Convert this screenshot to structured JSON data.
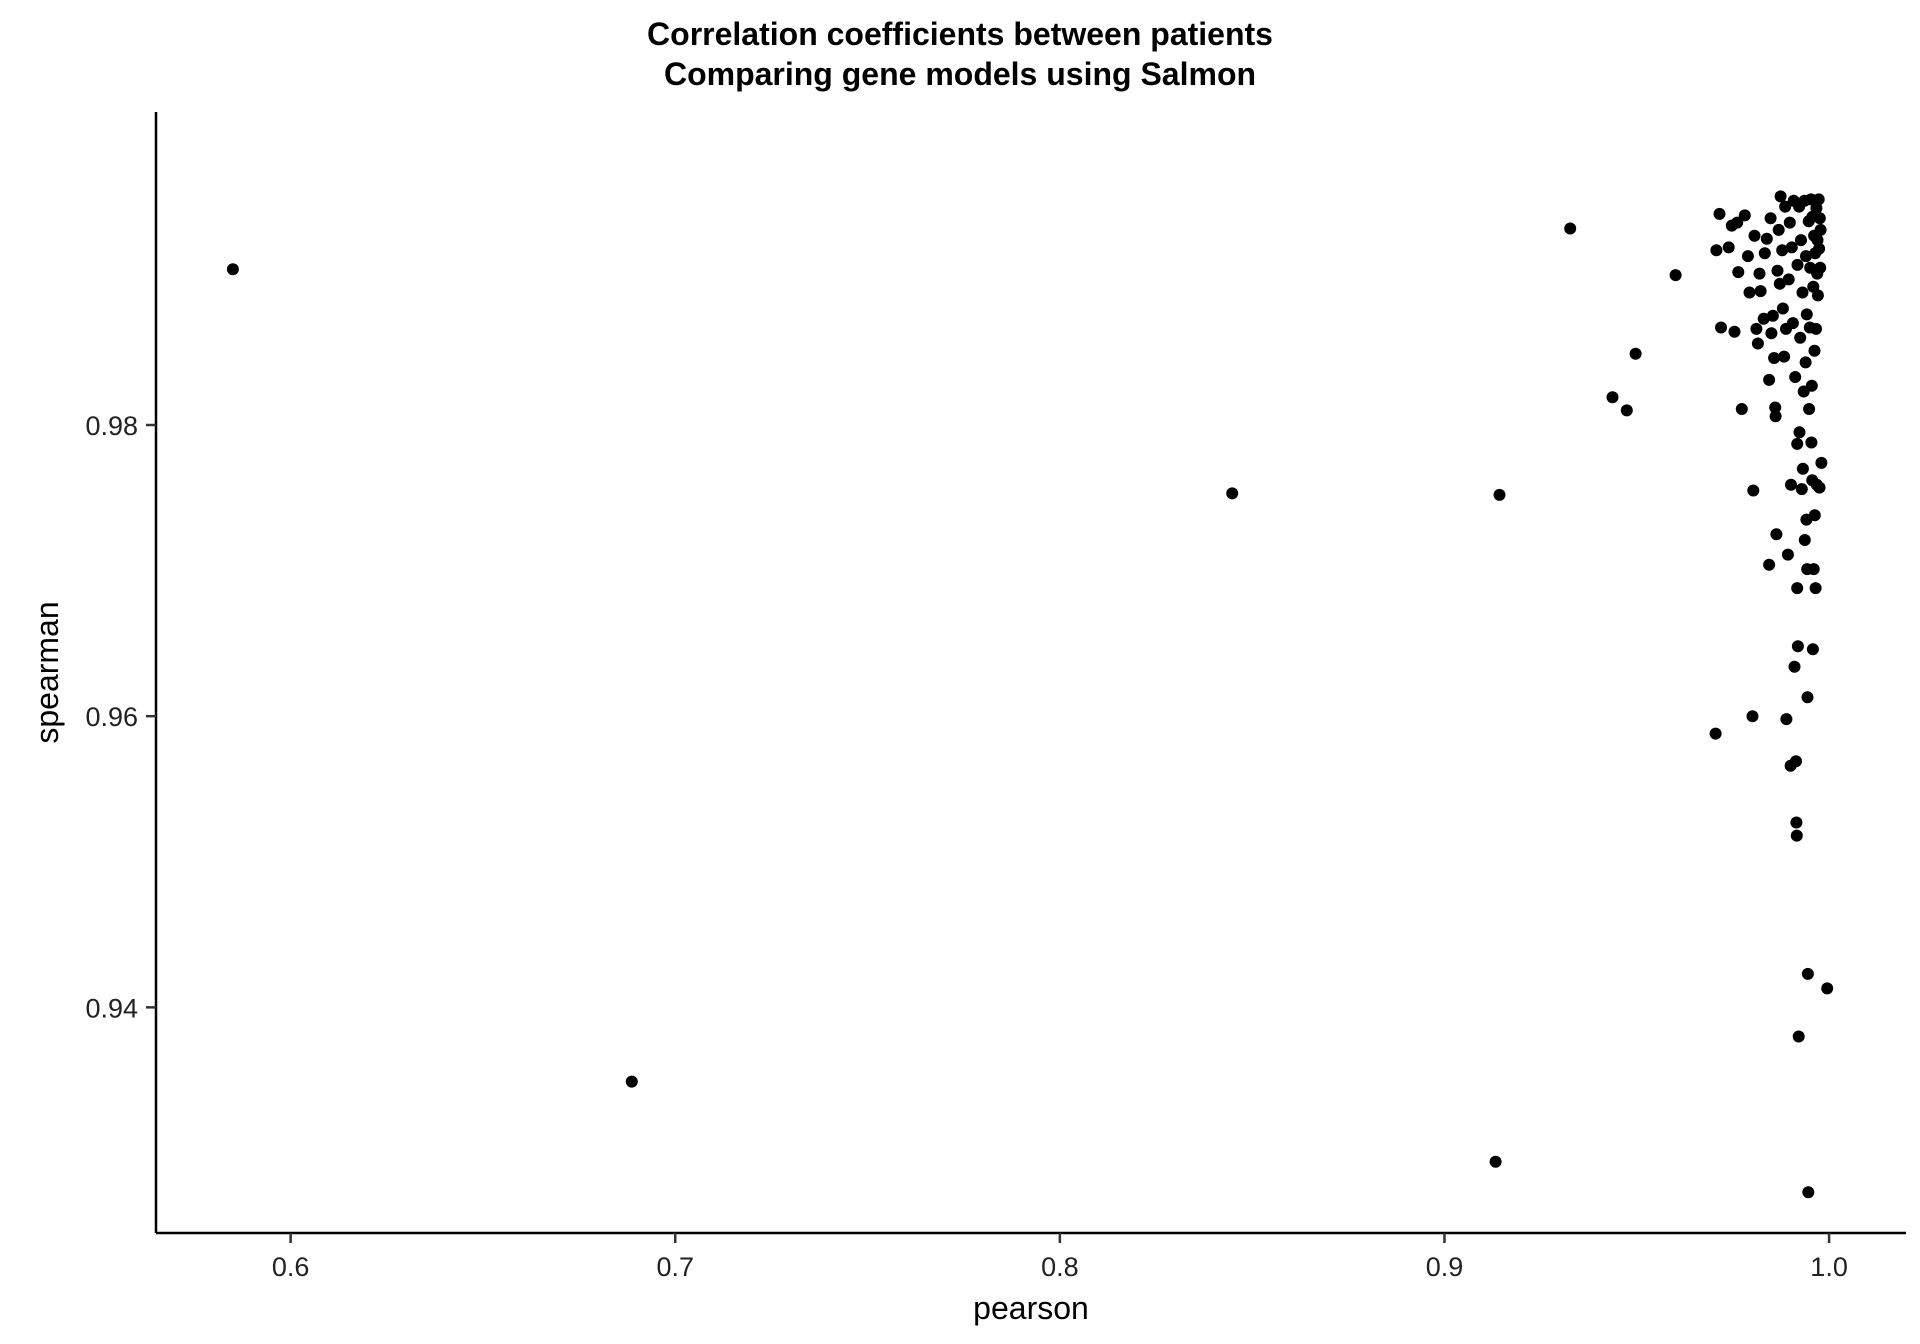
{
  "chart_data": {
    "type": "scatter",
    "title": "Correlation coefficients between patients",
    "subtitle": "Comparing gene models using Salmon",
    "xlabel": "pearson",
    "ylabel": "spearman",
    "xlim": [
      0.565,
      1.02
    ],
    "ylim": [
      0.9245,
      1.0015
    ],
    "xticks": [
      0.6,
      0.7,
      0.8,
      0.9,
      1.0
    ],
    "xtick_labels": [
      "0.6",
      "0.7",
      "0.8",
      "0.9",
      "1.0"
    ],
    "yticks": [
      0.94,
      0.96,
      0.98
    ],
    "ytick_labels": [
      "0.94",
      "0.96",
      "0.98"
    ],
    "grid": false,
    "legend": "none",
    "point_color": "#000000",
    "points": [
      [
        0.585,
        0.9907
      ],
      [
        0.6887,
        0.9349
      ],
      [
        0.8448,
        0.9753
      ],
      [
        0.9133,
        0.9294
      ],
      [
        0.9143,
        0.9752
      ],
      [
        0.9327,
        0.9935
      ],
      [
        0.9437,
        0.9819
      ],
      [
        0.9474,
        0.981
      ],
      [
        0.9497,
        0.9849
      ],
      [
        0.9601,
        0.9903
      ],
      [
        0.9705,
        0.9588
      ],
      [
        0.9707,
        0.992
      ],
      [
        0.9715,
        0.9945
      ],
      [
        0.9719,
        0.9867
      ],
      [
        0.9739,
        0.9922
      ],
      [
        0.9747,
        0.9937
      ],
      [
        0.9754,
        0.9864
      ],
      [
        0.9761,
        0.9939
      ],
      [
        0.9764,
        0.9905
      ],
      [
        0.9773,
        0.9811
      ],
      [
        0.9781,
        0.9944
      ],
      [
        0.9789,
        0.9916
      ],
      [
        0.9793,
        0.9891
      ],
      [
        0.9801,
        0.96
      ],
      [
        0.9803,
        0.9755
      ],
      [
        0.9806,
        0.993
      ],
      [
        0.9811,
        0.9866
      ],
      [
        0.9815,
        0.9856
      ],
      [
        0.9819,
        0.9904
      ],
      [
        0.9822,
        0.9892
      ],
      [
        0.983,
        0.9873
      ],
      [
        0.9833,
        0.9918
      ],
      [
        0.9838,
        0.9928
      ],
      [
        0.9844,
        0.9831
      ],
      [
        0.9844,
        0.9704
      ],
      [
        0.9848,
        0.9942
      ],
      [
        0.985,
        0.9863
      ],
      [
        0.9854,
        0.9875
      ],
      [
        0.9857,
        0.9846
      ],
      [
        0.986,
        0.9812
      ],
      [
        0.9861,
        0.9806
      ],
      [
        0.9863,
        0.9725
      ],
      [
        0.9866,
        0.9906
      ],
      [
        0.9869,
        0.9934
      ],
      [
        0.9872,
        0.9897
      ],
      [
        0.9874,
        0.9957
      ],
      [
        0.9878,
        0.992
      ],
      [
        0.988,
        0.988
      ],
      [
        0.9883,
        0.9847
      ],
      [
        0.9886,
        0.995
      ],
      [
        0.9888,
        0.9866
      ],
      [
        0.9889,
        0.9598
      ],
      [
        0.9893,
        0.9711
      ],
      [
        0.9895,
        0.99
      ],
      [
        0.9898,
        0.9939
      ],
      [
        0.99,
        0.9566
      ],
      [
        0.9901,
        0.9759
      ],
      [
        0.9903,
        0.9922
      ],
      [
        0.9906,
        0.987
      ],
      [
        0.9908,
        0.9954
      ],
      [
        0.991,
        0.9634
      ],
      [
        0.9912,
        0.9833
      ],
      [
        0.9914,
        0.9569
      ],
      [
        0.9915,
        0.9527
      ],
      [
        0.9916,
        0.9518
      ],
      [
        0.9917,
        0.9688
      ],
      [
        0.9917,
        0.9787
      ],
      [
        0.9918,
        0.991
      ],
      [
        0.9919,
        0.9648
      ],
      [
        0.9921,
        0.938
      ],
      [
        0.9922,
        0.995
      ],
      [
        0.9923,
        0.9795
      ],
      [
        0.9925,
        0.986
      ],
      [
        0.9927,
        0.9927
      ],
      [
        0.9929,
        0.9756
      ],
      [
        0.9931,
        0.9891
      ],
      [
        0.9932,
        0.977
      ],
      [
        0.9934,
        0.9823
      ],
      [
        0.9936,
        0.9954
      ],
      [
        0.9937,
        0.9721
      ],
      [
        0.9939,
        0.9843
      ],
      [
        0.994,
        0.9916
      ],
      [
        0.9941,
        0.9735
      ],
      [
        0.9942,
        0.9876
      ],
      [
        0.9943,
        0.9701
      ],
      [
        0.9944,
        0.9613
      ],
      [
        0.9945,
        0.9423
      ],
      [
        0.9946,
        0.9273
      ],
      [
        0.9947,
        0.994
      ],
      [
        0.9948,
        0.9811
      ],
      [
        0.995,
        0.9867
      ],
      [
        0.9951,
        0.9908
      ],
      [
        0.9953,
        0.9955
      ],
      [
        0.9954,
        0.9788
      ],
      [
        0.9955,
        0.9827
      ],
      [
        0.9956,
        0.9762
      ],
      [
        0.9957,
        0.9943
      ],
      [
        0.9958,
        0.9646
      ],
      [
        0.9959,
        0.9895
      ],
      [
        0.996,
        0.9701
      ],
      [
        0.9961,
        0.993
      ],
      [
        0.9962,
        0.9851
      ],
      [
        0.9963,
        0.9738
      ],
      [
        0.9964,
        0.9918
      ],
      [
        0.9965,
        0.9688
      ],
      [
        0.9966,
        0.9866
      ],
      [
        0.9967,
        0.9949
      ],
      [
        0.9968,
        0.9759
      ],
      [
        0.9969,
        0.9904
      ],
      [
        0.997,
        0.9927
      ],
      [
        0.9971,
        0.9889
      ],
      [
        0.9973,
        0.9955
      ],
      [
        0.9974,
        0.9921
      ],
      [
        0.9975,
        0.9757
      ],
      [
        0.9976,
        0.9942
      ],
      [
        0.9977,
        0.9908
      ],
      [
        0.9978,
        0.9934
      ],
      [
        0.998,
        0.9774
      ],
      [
        0.9995,
        0.9413
      ]
    ]
  }
}
